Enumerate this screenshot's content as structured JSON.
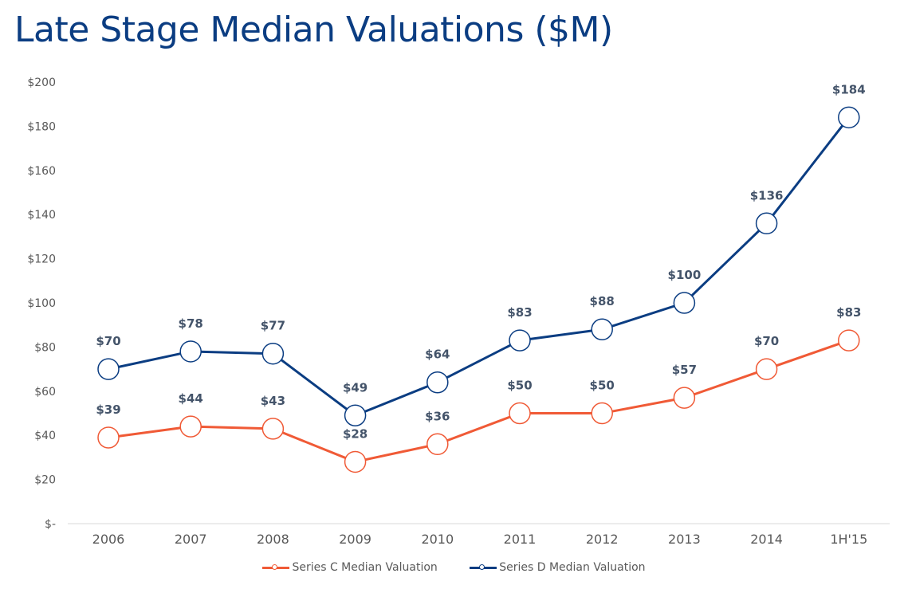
{
  "title": "Late Stage Median Valuations ($M)",
  "colors": {
    "title": "#0b3d82",
    "series_c": "#f05a36",
    "series_d": "#0b3d82",
    "data_label": "#44546a",
    "axis_text": "#595959",
    "baseline": "#d9d9d9"
  },
  "chart_data": {
    "type": "line",
    "title": "Late Stage Median Valuations ($M)",
    "xlabel": "",
    "ylabel": "",
    "categories": [
      "2006",
      "2007",
      "2008",
      "2009",
      "2010",
      "2011",
      "2012",
      "2013",
      "2014",
      "1H'15"
    ],
    "ylim": [
      0,
      200
    ],
    "yticks": [
      0,
      20,
      40,
      60,
      80,
      100,
      120,
      140,
      160,
      180,
      200
    ],
    "ytick_labels": [
      "$-",
      "$20",
      "$40",
      "$60",
      "$80",
      "$100",
      "$120",
      "$140",
      "$160",
      "$180",
      "$200"
    ],
    "grid": false,
    "legend_position": "bottom-center",
    "series": [
      {
        "name": "Series C Median Valuation",
        "key": "series_c",
        "values": [
          39,
          44,
          43,
          28,
          36,
          50,
          50,
          57,
          70,
          83
        ],
        "labels": [
          "$39",
          "$44",
          "$43",
          "$28",
          "$36",
          "$50",
          "$50",
          "$57",
          "$70",
          "$83"
        ]
      },
      {
        "name": "Series D Median Valuation",
        "key": "series_d",
        "values": [
          70,
          78,
          77,
          49,
          64,
          83,
          88,
          100,
          136,
          184
        ],
        "labels": [
          "$70",
          "$78",
          "$77",
          "$49",
          "$64",
          "$83",
          "$88",
          "$100",
          "$136",
          "$184"
        ]
      }
    ]
  },
  "legend": {
    "items": [
      {
        "label": "Series C Median Valuation",
        "key": "series_c"
      },
      {
        "label": "Series D Median Valuation",
        "key": "series_d"
      }
    ]
  }
}
